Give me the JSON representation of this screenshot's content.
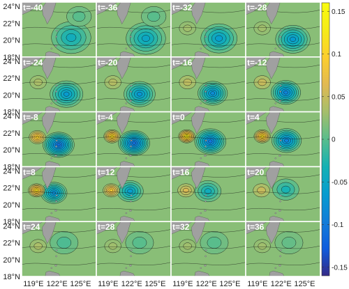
{
  "chart_data": {
    "type": "heatmap",
    "layout": {
      "rows": 5,
      "cols": 4
    },
    "panels": [
      {
        "label": "t=-40",
        "features": [
          {
            "lon": 123.8,
            "lat": 20.3,
            "amp": -0.06,
            "r": 2.4
          },
          {
            "lon": 124.8,
            "lat": 22.8,
            "amp": -0.02,
            "r": 1.5
          }
        ]
      },
      {
        "label": "t=-36",
        "features": [
          {
            "lon": 123.8,
            "lat": 20.2,
            "amp": -0.07,
            "r": 2.4
          },
          {
            "lon": 124.8,
            "lat": 22.8,
            "amp": -0.02,
            "r": 1.5
          }
        ]
      },
      {
        "label": "t=-32",
        "features": [
          {
            "lon": 123.6,
            "lat": 20.2,
            "amp": -0.08,
            "r": 2.2
          },
          {
            "lon": 119.6,
            "lat": 21.4,
            "amp": 0.01,
            "r": 1.0
          }
        ]
      },
      {
        "label": "t=-28",
        "features": [
          {
            "lon": 123.5,
            "lat": 20.1,
            "amp": -0.085,
            "r": 2.1
          },
          {
            "lon": 119.6,
            "lat": 21.4,
            "amp": 0.01,
            "r": 1.0
          }
        ]
      },
      {
        "label": "t=-24",
        "features": [
          {
            "lon": 123.2,
            "lat": 20.1,
            "amp": -0.085,
            "r": 2.0
          },
          {
            "lon": 119.6,
            "lat": 21.5,
            "amp": 0.015,
            "r": 1.0
          }
        ]
      },
      {
        "label": "t=-20",
        "features": [
          {
            "lon": 123.0,
            "lat": 20.1,
            "amp": -0.09,
            "r": 1.9
          },
          {
            "lon": 119.6,
            "lat": 21.5,
            "amp": 0.02,
            "r": 1.0
          }
        ]
      },
      {
        "label": "t=-16",
        "features": [
          {
            "lon": 122.8,
            "lat": 20.2,
            "amp": -0.1,
            "r": 1.8
          },
          {
            "lon": 119.6,
            "lat": 21.5,
            "amp": 0.025,
            "r": 1.0
          }
        ]
      },
      {
        "label": "t=-12",
        "features": [
          {
            "lon": 122.6,
            "lat": 20.3,
            "amp": -0.11,
            "r": 1.8
          },
          {
            "lon": 119.6,
            "lat": 21.5,
            "amp": 0.03,
            "r": 1.0
          }
        ]
      },
      {
        "label": "t=-8",
        "features": [
          {
            "lon": 122.2,
            "lat": 20.6,
            "amp": -0.13,
            "r": 1.9
          },
          {
            "lon": 119.5,
            "lat": 21.5,
            "amp": 0.08,
            "r": 1.0
          }
        ]
      },
      {
        "label": "t=-4",
        "features": [
          {
            "lon": 122.3,
            "lat": 20.8,
            "amp": -0.13,
            "r": 1.9
          },
          {
            "lon": 119.5,
            "lat": 21.6,
            "amp": 0.1,
            "r": 1.0
          }
        ]
      },
      {
        "label": "t=0",
        "features": [
          {
            "lon": 122.5,
            "lat": 21.0,
            "amp": -0.12,
            "r": 1.9
          },
          {
            "lon": 119.5,
            "lat": 21.6,
            "amp": 0.12,
            "r": 1.0
          }
        ]
      },
      {
        "label": "t=4",
        "features": [
          {
            "lon": 122.7,
            "lat": 21.1,
            "amp": -0.11,
            "r": 1.8
          },
          {
            "lon": 119.6,
            "lat": 21.6,
            "amp": 0.1,
            "r": 1.0
          }
        ]
      },
      {
        "label": "t=8",
        "features": [
          {
            "lon": 121.6,
            "lat": 21.4,
            "amp": -0.1,
            "r": 1.6
          },
          {
            "lon": 119.4,
            "lat": 21.7,
            "amp": 0.1,
            "r": 1.0
          }
        ]
      },
      {
        "label": "t=12",
        "features": [
          {
            "lon": 121.8,
            "lat": 21.6,
            "amp": -0.08,
            "r": 1.6
          },
          {
            "lon": 119.4,
            "lat": 21.7,
            "amp": 0.07,
            "r": 1.0
          }
        ]
      },
      {
        "label": "t=16",
        "features": [
          {
            "lon": 122.2,
            "lat": 21.6,
            "amp": -0.06,
            "r": 1.6
          },
          {
            "lon": 119.4,
            "lat": 21.7,
            "amp": 0.04,
            "r": 1.0
          }
        ]
      },
      {
        "label": "t=20",
        "features": [
          {
            "lon": 122.6,
            "lat": 21.8,
            "amp": -0.05,
            "r": 1.6
          },
          {
            "lon": 119.5,
            "lat": 21.7,
            "amp": 0.03,
            "r": 1.0
          }
        ]
      },
      {
        "label": "t=24",
        "features": [
          {
            "lon": 122.9,
            "lat": 22.0,
            "amp": -0.025,
            "r": 1.7
          },
          {
            "lon": 119.6,
            "lat": 21.6,
            "amp": 0.015,
            "r": 1.0
          }
        ]
      },
      {
        "label": "t=28",
        "features": [
          {
            "lon": 123.0,
            "lat": 22.0,
            "amp": -0.02,
            "r": 1.7
          },
          {
            "lon": 119.6,
            "lat": 21.6,
            "amp": 0.01,
            "r": 1.0
          }
        ]
      },
      {
        "label": "t=32",
        "features": [
          {
            "lon": 123.0,
            "lat": 22.0,
            "amp": -0.02,
            "r": 1.7
          },
          {
            "lon": 119.6,
            "lat": 21.6,
            "amp": 0.01,
            "r": 1.0
          }
        ]
      },
      {
        "label": "t=36",
        "features": [
          {
            "lon": 123.0,
            "lat": 22.0,
            "amp": -0.015,
            "r": 1.7
          },
          {
            "lon": 119.6,
            "lat": 21.6,
            "amp": 0.01,
            "r": 1.0
          }
        ]
      }
    ],
    "x_ticks": [
      "119°E",
      "122°E",
      "125°E"
    ],
    "x_tick_values": [
      119,
      122,
      125
    ],
    "y_ticks": [
      "24°N",
      "22°N",
      "20°N",
      "18°N"
    ],
    "y_tick_values": [
      24,
      22,
      20,
      18
    ],
    "xlim": [
      117.5,
      127.0
    ],
    "ylim": [
      18,
      24.5
    ],
    "colorbar": {
      "ticks": [
        "0.15",
        "0.1",
        "0.05",
        "0",
        "-0.05",
        "-0.1",
        "-0.15"
      ],
      "tick_values": [
        0.15,
        0.1,
        0.05,
        0,
        -0.05,
        -0.1,
        -0.15
      ],
      "range": [
        -0.16,
        0.16
      ],
      "colormap": "parula"
    },
    "background_value": 0.02,
    "contour_interval": 0.015,
    "land_color": "#a0a0a0",
    "contour_color": "#111111"
  }
}
